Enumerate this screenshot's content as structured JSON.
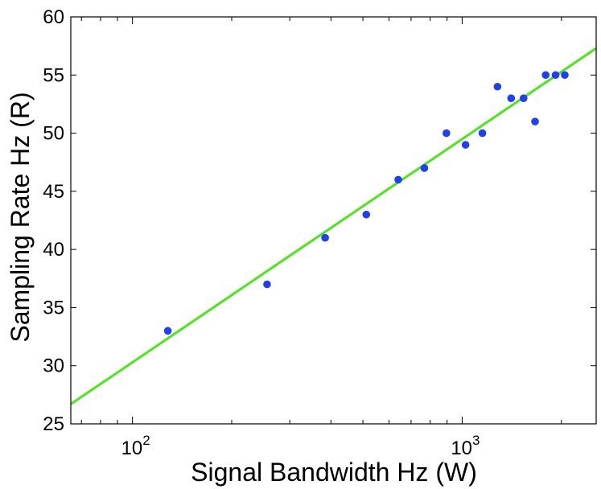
{
  "chart_data": {
    "type": "scatter",
    "xlabel": "Signal Bandwidth Hz (W)",
    "ylabel": "Sampling Rate Hz (R)",
    "x_scale": "log",
    "xlim": [
      65,
      2550
    ],
    "ylim": [
      25,
      60
    ],
    "x_ticks": [
      {
        "value": 100,
        "base": "10",
        "exponent": "2"
      },
      {
        "value": 1000,
        "base": "10",
        "exponent": "3"
      }
    ],
    "y_ticks": [
      {
        "value": 25,
        "label": "25"
      },
      {
        "value": 30,
        "label": "30"
      },
      {
        "value": 35,
        "label": "35"
      },
      {
        "value": 40,
        "label": "40"
      },
      {
        "value": 45,
        "label": "45"
      },
      {
        "value": 50,
        "label": "50"
      },
      {
        "value": 55,
        "label": "55"
      },
      {
        "value": 60,
        "label": "60"
      }
    ],
    "grid": false,
    "legend": "none",
    "series": [
      {
        "kind": "scatter",
        "color": "#1f3ff0",
        "points": [
          {
            "x": 128,
            "y": 33
          },
          {
            "x": 256,
            "y": 37
          },
          {
            "x": 384,
            "y": 41
          },
          {
            "x": 512,
            "y": 43
          },
          {
            "x": 640,
            "y": 46
          },
          {
            "x": 768,
            "y": 47
          },
          {
            "x": 896,
            "y": 50
          },
          {
            "x": 1024,
            "y": 49
          },
          {
            "x": 1152,
            "y": 50
          },
          {
            "x": 1280,
            "y": 54
          },
          {
            "x": 1408,
            "y": 53
          },
          {
            "x": 1536,
            "y": 53
          },
          {
            "x": 1664,
            "y": 51
          },
          {
            "x": 1792,
            "y": 55
          },
          {
            "x": 1920,
            "y": 55
          },
          {
            "x": 2048,
            "y": 55
          }
        ]
      },
      {
        "kind": "fit-line",
        "color": "#4ce61a",
        "points": [
          {
            "x": 65,
            "y": 26.7
          },
          {
            "x": 2550,
            "y": 57.3
          }
        ]
      }
    ]
  }
}
